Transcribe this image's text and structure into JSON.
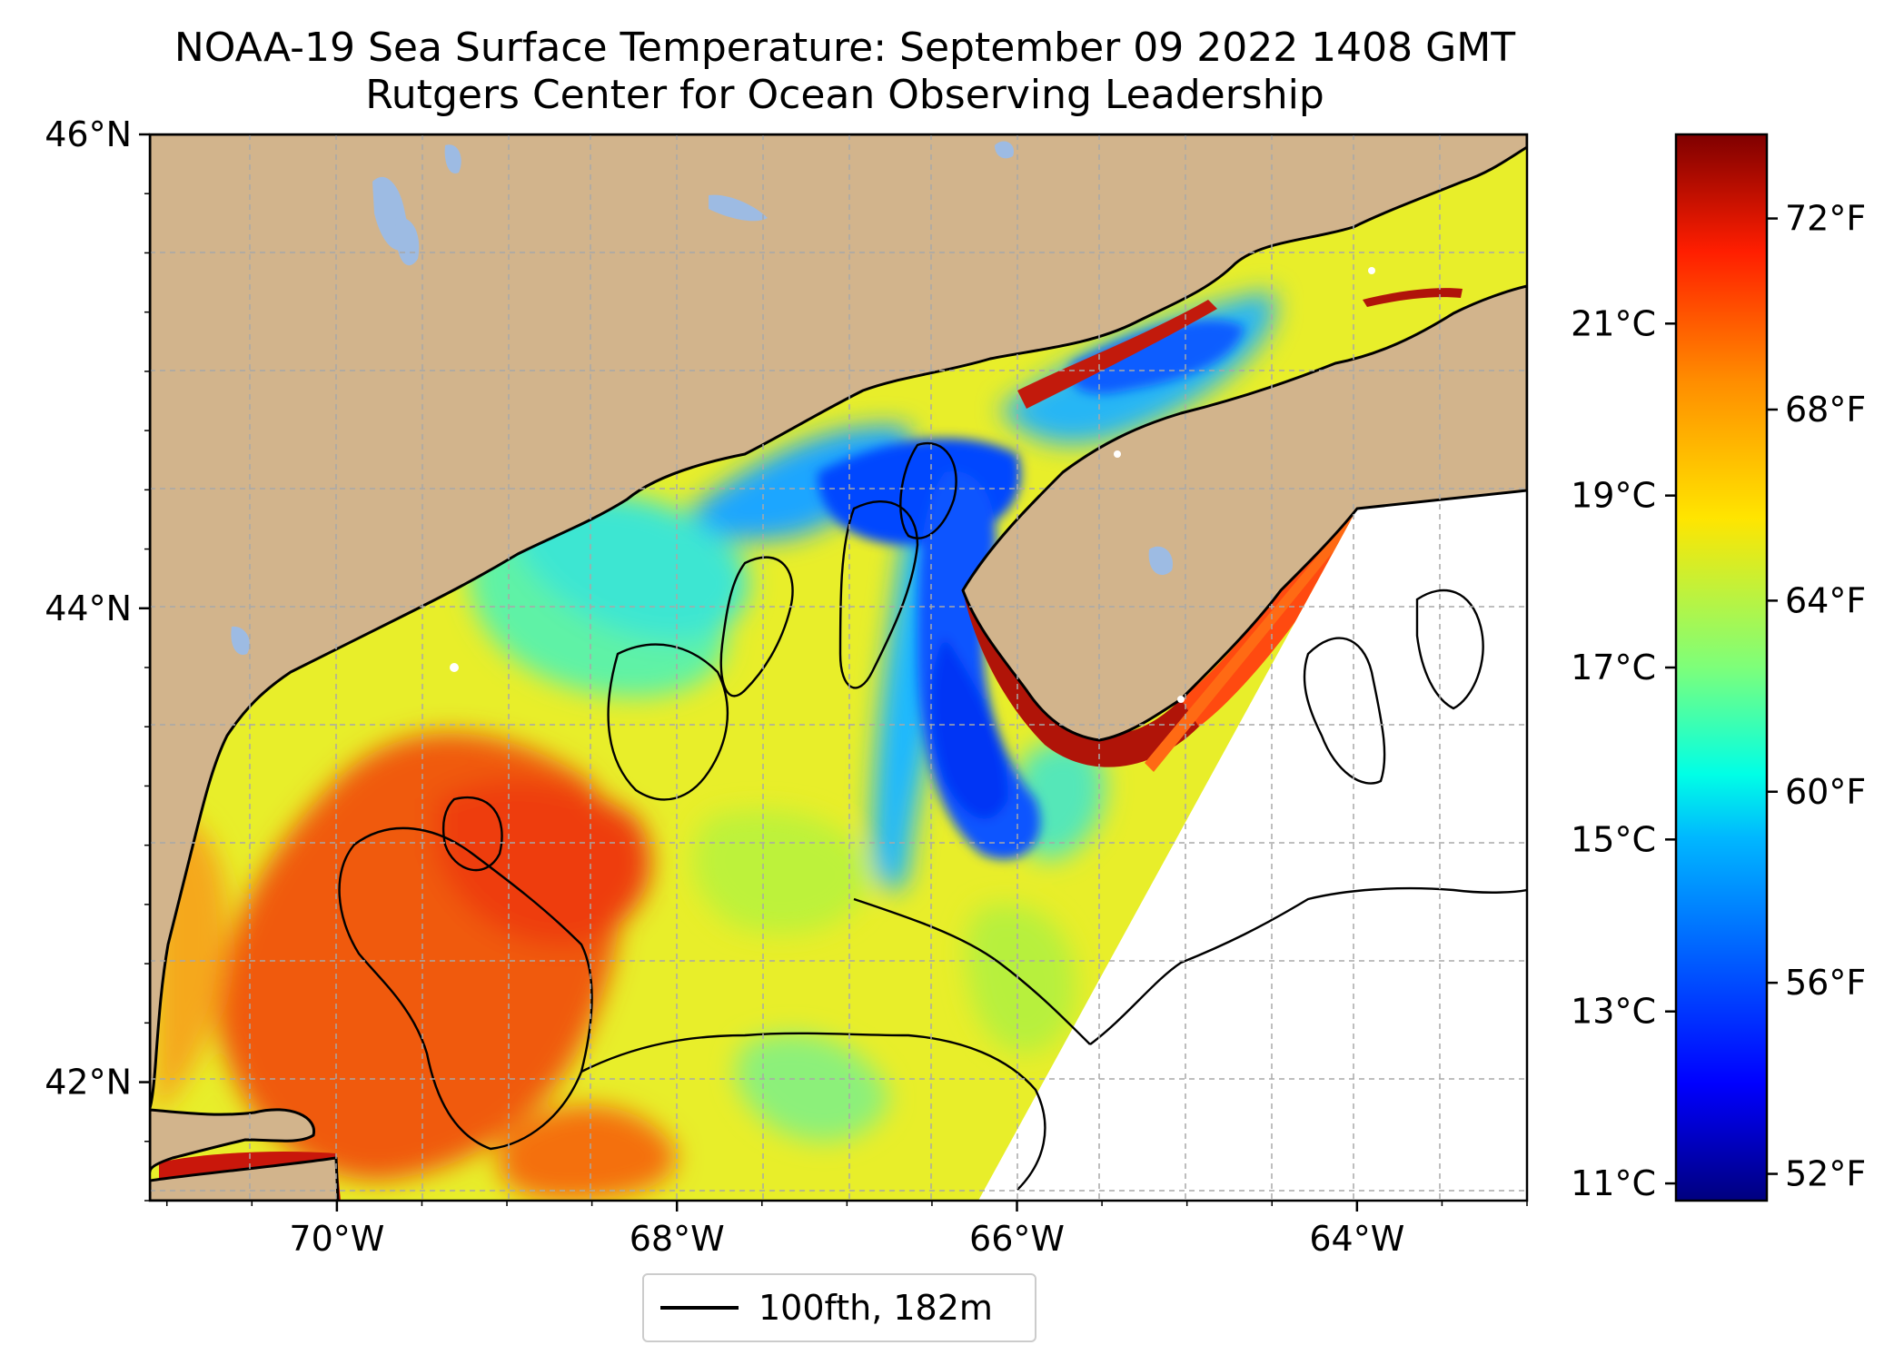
{
  "title": "NOAA-19 Sea Surface Temperature: September 09 2022 1408 GMT",
  "subtitle": "Rutgers Center for Ocean Observing Leadership",
  "map": {
    "lat_ticks": [
      {
        "value": 46,
        "label": "46°N"
      },
      {
        "value": 44,
        "label": "44°N"
      },
      {
        "value": 42,
        "label": "42°N"
      }
    ],
    "lon_ticks": [
      {
        "value": -70,
        "label": "70°W"
      },
      {
        "value": -68,
        "label": "68°W"
      },
      {
        "value": -66,
        "label": "66°W"
      },
      {
        "value": -64,
        "label": "64°W"
      }
    ],
    "lon_range": [
      -71.1,
      -63.0
    ],
    "lat_range": [
      41.5,
      46.0
    ],
    "gridlines": true,
    "land_color": "#d2b48c",
    "lake_color": "#9dbbe3",
    "coastline_color": "#000000"
  },
  "colorbar": {
    "colormap": "jet",
    "celsius_range": [
      10.8,
      23.2
    ],
    "celsius_ticks": [
      {
        "value": 11,
        "label": "11°C"
      },
      {
        "value": 13,
        "label": "13°C"
      },
      {
        "value": 15,
        "label": "15°C"
      },
      {
        "value": 17,
        "label": "17°C"
      },
      {
        "value": 19,
        "label": "19°C"
      },
      {
        "value": 21,
        "label": "21°C"
      }
    ],
    "fahrenheit_ticks": [
      {
        "value": 52,
        "label": "52°F"
      },
      {
        "value": 56,
        "label": "56°F"
      },
      {
        "value": 60,
        "label": "60°F"
      },
      {
        "value": 64,
        "label": "64°F"
      },
      {
        "value": 68,
        "label": "68°F"
      },
      {
        "value": 72,
        "label": "72°F"
      }
    ]
  },
  "legend": {
    "label": "100fth, 182m"
  }
}
